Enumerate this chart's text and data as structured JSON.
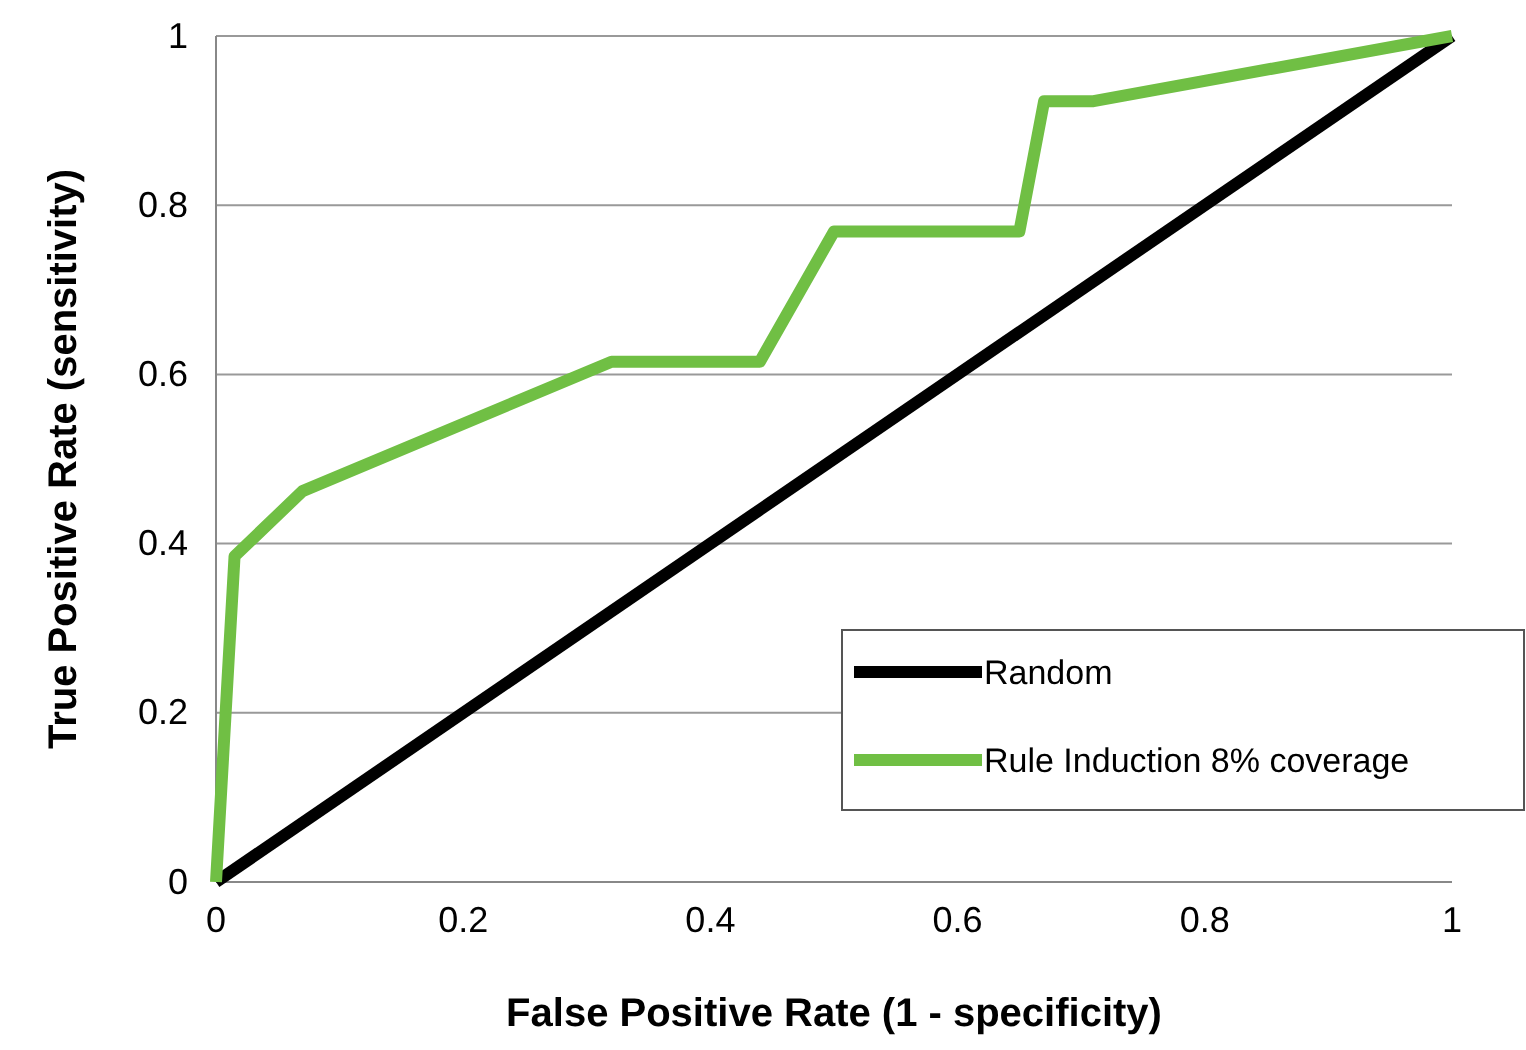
{
  "chart_data": {
    "type": "line",
    "xlabel": "False Positive Rate (1 - specificity)",
    "ylabel": "True Positive Rate (sensitivity)",
    "xlim": [
      0,
      1
    ],
    "ylim": [
      0,
      1
    ],
    "xticks": [
      0,
      0.2,
      0.4,
      0.6,
      0.8,
      1
    ],
    "yticks": [
      0,
      0.2,
      0.4,
      0.6,
      0.8,
      1
    ],
    "grid": "y",
    "legend": "bottom right",
    "marker": "none",
    "line_style": "solid",
    "series": [
      {
        "name": "Random",
        "color": "#000000",
        "x": [
          0,
          1
        ],
        "values": [
          0,
          1
        ]
      },
      {
        "name": "Rule Induction 8% coverage",
        "color": "#70bf44",
        "x": [
          0,
          0.015,
          0.07,
          0.32,
          0.44,
          0.5,
          0.65,
          0.67,
          0.71,
          1
        ],
        "values": [
          0,
          0.385,
          0.462,
          0.615,
          0.615,
          0.769,
          0.769,
          0.923,
          0.923,
          1
        ]
      }
    ]
  }
}
